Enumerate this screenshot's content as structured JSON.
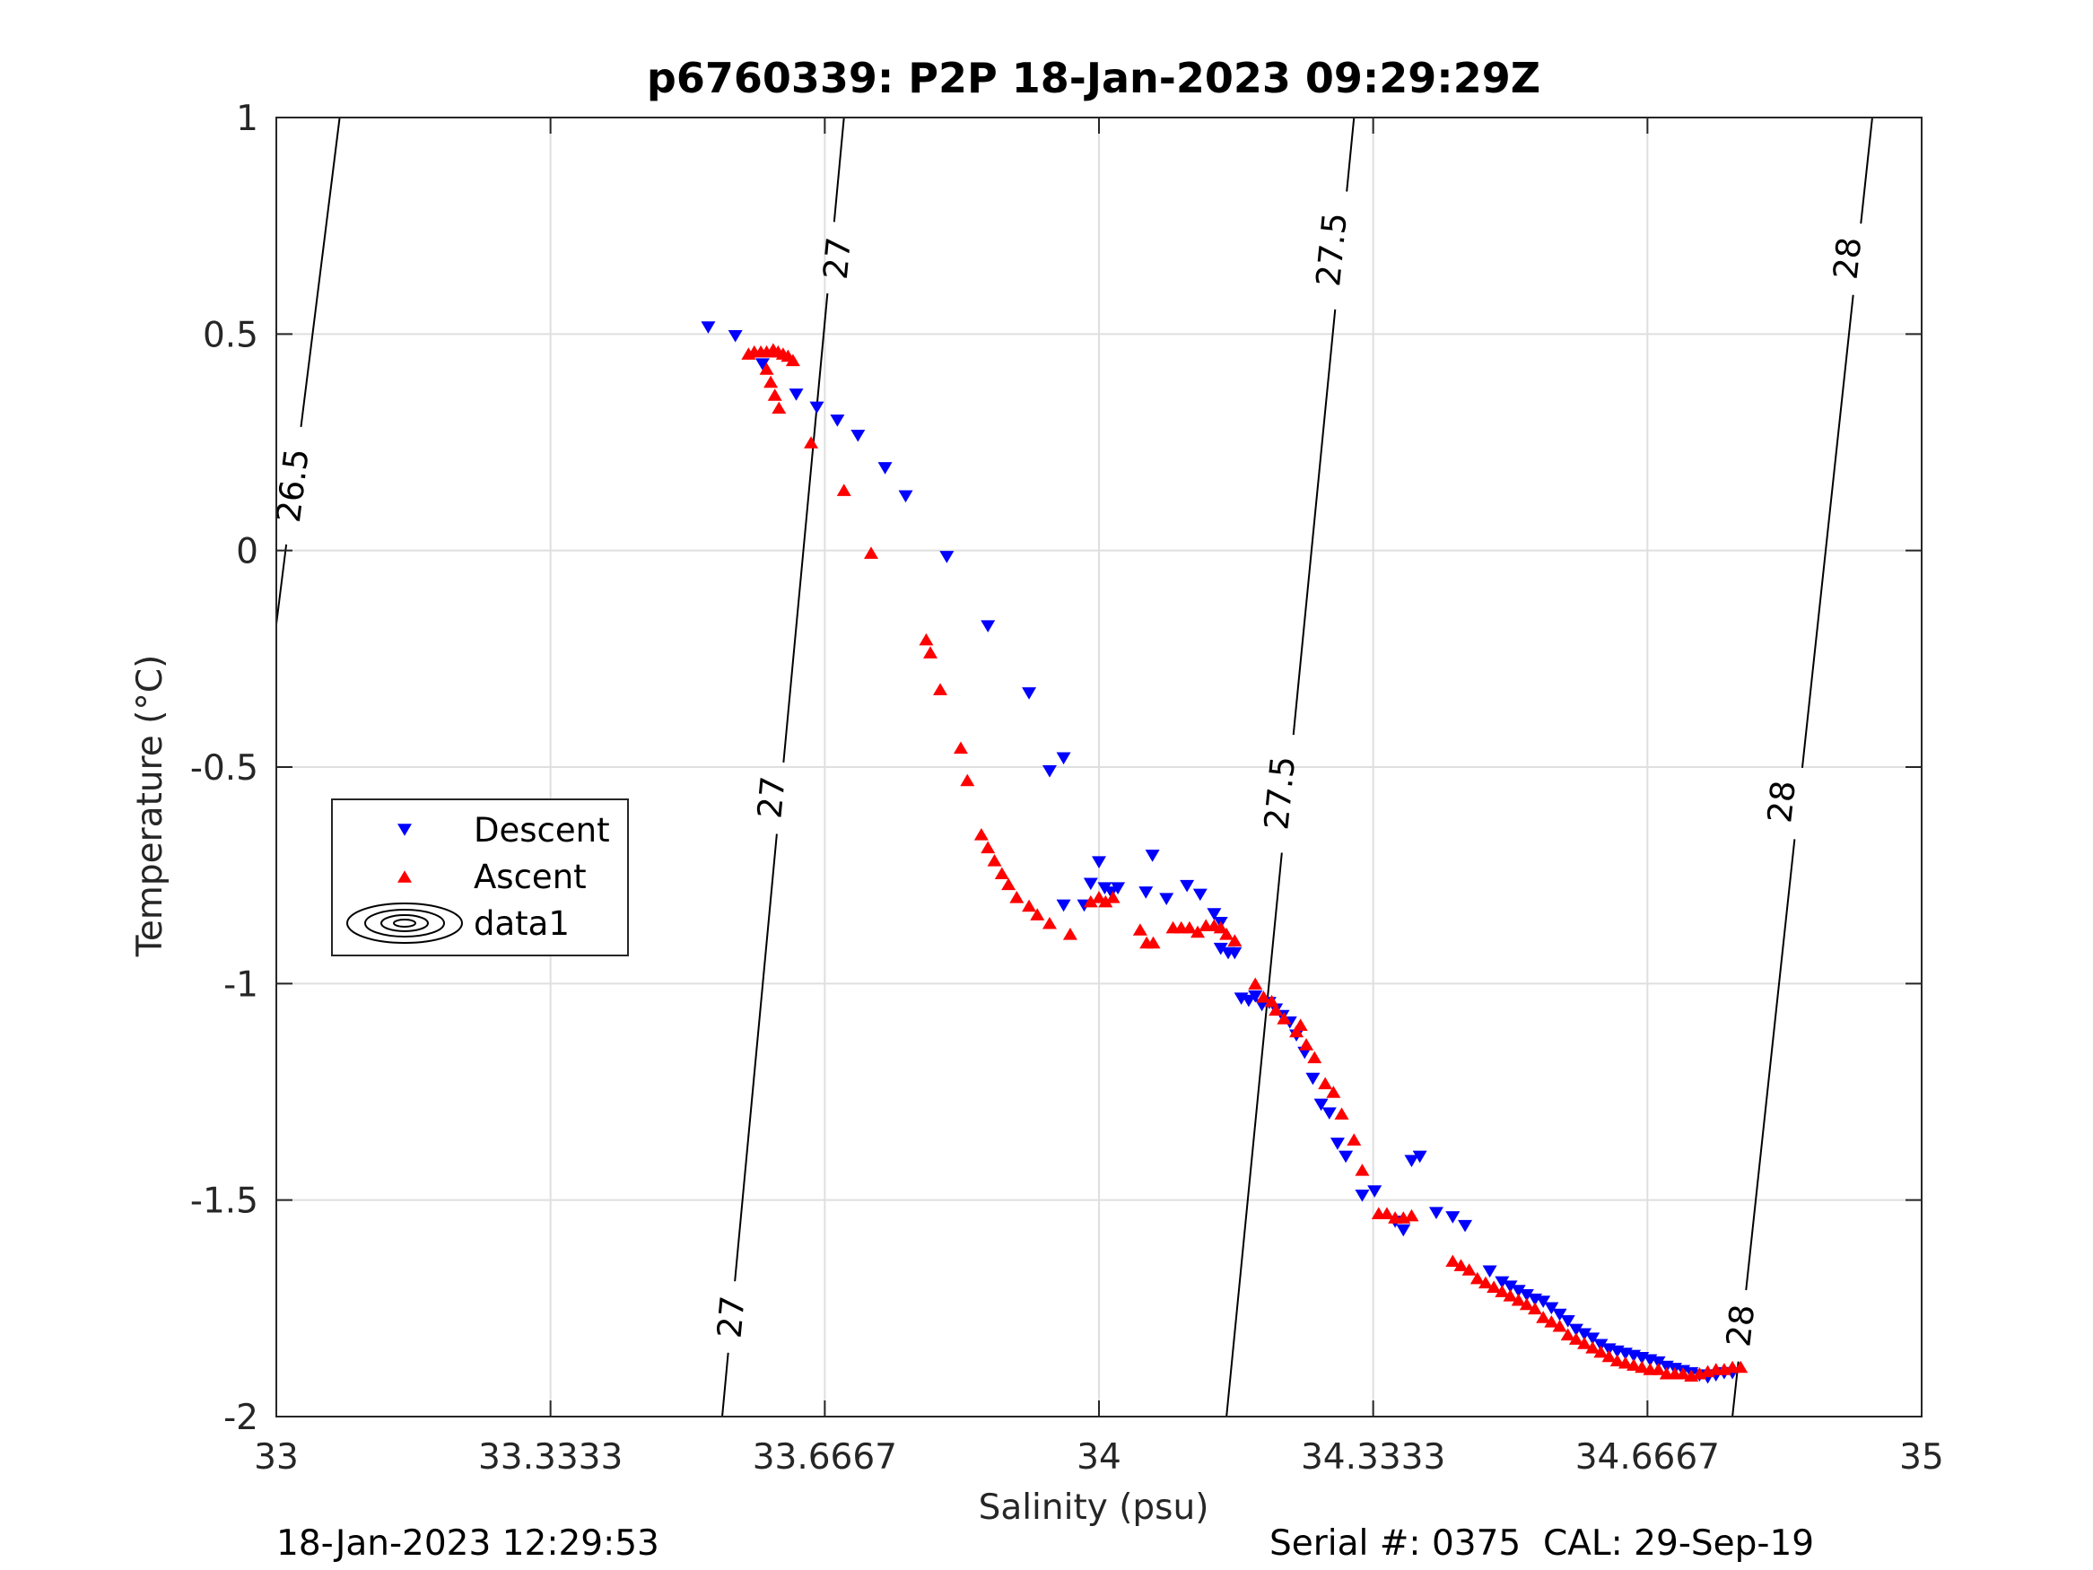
{
  "chart_data": {
    "type": "scatter",
    "title": "p6760339: P2P 18-Jan-2023 09:29:29Z",
    "xlabel": "Salinity (psu)",
    "ylabel": "Temperature (°C)",
    "xlim": [
      33,
      35
    ],
    "ylim": [
      -2,
      1
    ],
    "xticks": [
      33,
      33.3333,
      33.6667,
      34,
      34.3333,
      34.6667,
      35
    ],
    "xtick_labels": [
      "33",
      "33.3333",
      "33.6667",
      "34",
      "34.3333",
      "34.6667",
      "35"
    ],
    "yticks": [
      1,
      0.5,
      0,
      -0.5,
      -1,
      -1.5,
      -2
    ],
    "ytick_labels": [
      "1",
      "0.5",
      "0",
      "-0.5",
      "-1",
      "-1.5",
      "-2"
    ],
    "grid": true,
    "legend_position": "left",
    "legend": [
      {
        "label": "Descent",
        "marker": "triangle-down",
        "color": "#0000ff"
      },
      {
        "label": "Ascent",
        "marker": "triangle-up",
        "color": "#ff0000"
      },
      {
        "label": "data1",
        "marker": "contour",
        "color": "#000000"
      }
    ],
    "series": [
      {
        "name": "Descent",
        "color": "#0000ff",
        "marker": "triangle-down",
        "points": [
          [
            33.525,
            0.515
          ],
          [
            33.558,
            0.495
          ],
          [
            33.591,
            0.43
          ],
          [
            33.632,
            0.36
          ],
          [
            33.657,
            0.33
          ],
          [
            33.682,
            0.3
          ],
          [
            33.707,
            0.265
          ],
          [
            33.74,
            0.19
          ],
          [
            33.765,
            0.125
          ],
          [
            33.815,
            -0.015
          ],
          [
            33.865,
            -0.175
          ],
          [
            33.915,
            -0.33
          ],
          [
            33.94,
            -0.51
          ],
          [
            33.957,
            -0.48
          ],
          [
            33.957,
            -0.82
          ],
          [
            33.982,
            -0.82
          ],
          [
            33.99,
            -0.77
          ],
          [
            34.0,
            -0.72
          ],
          [
            34.007,
            -0.78
          ],
          [
            34.015,
            -0.79
          ],
          [
            34.023,
            -0.78
          ],
          [
            34.057,
            -0.79
          ],
          [
            34.065,
            -0.705
          ],
          [
            34.082,
            -0.805
          ],
          [
            34.107,
            -0.775
          ],
          [
            34.123,
            -0.795
          ],
          [
            34.14,
            -0.84
          ],
          [
            34.148,
            -0.86
          ],
          [
            34.148,
            -0.92
          ],
          [
            34.157,
            -0.93
          ],
          [
            34.165,
            -0.93
          ],
          [
            34.173,
            -1.035
          ],
          [
            34.182,
            -1.04
          ],
          [
            34.19,
            -1.03
          ],
          [
            34.198,
            -1.05
          ],
          [
            34.207,
            -1.045
          ],
          [
            34.215,
            -1.06
          ],
          [
            34.223,
            -1.075
          ],
          [
            34.232,
            -1.09
          ],
          [
            34.24,
            -1.12
          ],
          [
            34.25,
            -1.16
          ],
          [
            34.26,
            -1.22
          ],
          [
            34.27,
            -1.28
          ],
          [
            34.28,
            -1.3
          ],
          [
            34.29,
            -1.37
          ],
          [
            34.3,
            -1.4
          ],
          [
            34.32,
            -1.49
          ],
          [
            34.335,
            -1.48
          ],
          [
            34.36,
            -1.55
          ],
          [
            34.37,
            -1.57
          ],
          [
            34.38,
            -1.41
          ],
          [
            34.39,
            -1.4
          ],
          [
            34.41,
            -1.53
          ],
          [
            34.43,
            -1.54
          ],
          [
            34.445,
            -1.56
          ],
          [
            34.475,
            -1.665
          ],
          [
            34.49,
            -1.69
          ],
          [
            34.5,
            -1.7
          ],
          [
            34.51,
            -1.71
          ],
          [
            34.52,
            -1.72
          ],
          [
            34.53,
            -1.73
          ],
          [
            34.54,
            -1.735
          ],
          [
            34.55,
            -1.75
          ],
          [
            34.56,
            -1.765
          ],
          [
            34.57,
            -1.78
          ],
          [
            34.58,
            -1.8
          ],
          [
            34.59,
            -1.81
          ],
          [
            34.6,
            -1.82
          ],
          [
            34.61,
            -1.835
          ],
          [
            34.62,
            -1.845
          ],
          [
            34.63,
            -1.85
          ],
          [
            34.64,
            -1.855
          ],
          [
            34.65,
            -1.86
          ],
          [
            34.66,
            -1.865
          ],
          [
            34.67,
            -1.87
          ],
          [
            34.68,
            -1.875
          ],
          [
            34.69,
            -1.885
          ],
          [
            34.7,
            -1.89
          ],
          [
            34.71,
            -1.895
          ],
          [
            34.72,
            -1.9
          ],
          [
            34.73,
            -1.905
          ],
          [
            34.74,
            -1.91
          ],
          [
            34.75,
            -1.905
          ],
          [
            34.76,
            -1.9
          ],
          [
            34.77,
            -1.9
          ]
        ]
      },
      {
        "name": "Ascent",
        "color": "#ff0000",
        "marker": "triangle-up",
        "points": [
          [
            33.574,
            0.455
          ],
          [
            33.581,
            0.46
          ],
          [
            33.589,
            0.46
          ],
          [
            33.596,
            0.46
          ],
          [
            33.604,
            0.465
          ],
          [
            33.61,
            0.46
          ],
          [
            33.616,
            0.455
          ],
          [
            33.622,
            0.45
          ],
          [
            33.628,
            0.44
          ],
          [
            33.596,
            0.42
          ],
          [
            33.601,
            0.39
          ],
          [
            33.606,
            0.36
          ],
          [
            33.611,
            0.33
          ],
          [
            33.65,
            0.25
          ],
          [
            33.69,
            0.14
          ],
          [
            33.723,
            -0.005
          ],
          [
            33.79,
            -0.205
          ],
          [
            33.795,
            -0.235
          ],
          [
            33.807,
            -0.32
          ],
          [
            33.832,
            -0.455
          ],
          [
            33.84,
            -0.53
          ],
          [
            33.857,
            -0.655
          ],
          [
            33.865,
            -0.685
          ],
          [
            33.873,
            -0.715
          ],
          [
            33.882,
            -0.745
          ],
          [
            33.89,
            -0.77
          ],
          [
            33.9,
            -0.8
          ],
          [
            33.915,
            -0.82
          ],
          [
            33.925,
            -0.84
          ],
          [
            33.94,
            -0.86
          ],
          [
            33.965,
            -0.885
          ],
          [
            33.99,
            -0.81
          ],
          [
            34.0,
            -0.8
          ],
          [
            34.008,
            -0.81
          ],
          [
            34.017,
            -0.8
          ],
          [
            34.05,
            -0.875
          ],
          [
            34.058,
            -0.905
          ],
          [
            34.066,
            -0.905
          ],
          [
            34.09,
            -0.87
          ],
          [
            34.1,
            -0.87
          ],
          [
            34.11,
            -0.87
          ],
          [
            34.12,
            -0.88
          ],
          [
            34.13,
            -0.865
          ],
          [
            34.14,
            -0.865
          ],
          [
            34.148,
            -0.87
          ],
          [
            34.155,
            -0.885
          ],
          [
            34.165,
            -0.9
          ],
          [
            34.19,
            -1.0
          ],
          [
            34.2,
            -1.03
          ],
          [
            34.21,
            -1.04
          ],
          [
            34.215,
            -1.06
          ],
          [
            34.225,
            -1.08
          ],
          [
            34.24,
            -1.11
          ],
          [
            34.245,
            -1.095
          ],
          [
            34.252,
            -1.14
          ],
          [
            34.262,
            -1.17
          ],
          [
            34.275,
            -1.23
          ],
          [
            34.285,
            -1.25
          ],
          [
            34.295,
            -1.3
          ],
          [
            34.31,
            -1.36
          ],
          [
            34.32,
            -1.43
          ],
          [
            34.34,
            -1.53
          ],
          [
            34.35,
            -1.53
          ],
          [
            34.36,
            -1.54
          ],
          [
            34.37,
            -1.54
          ],
          [
            34.38,
            -1.535
          ],
          [
            34.43,
            -1.64
          ],
          [
            34.44,
            -1.65
          ],
          [
            34.45,
            -1.66
          ],
          [
            34.46,
            -1.68
          ],
          [
            34.47,
            -1.69
          ],
          [
            34.48,
            -1.7
          ],
          [
            34.49,
            -1.71
          ],
          [
            34.5,
            -1.72
          ],
          [
            34.51,
            -1.73
          ],
          [
            34.52,
            -1.74
          ],
          [
            34.53,
            -1.75
          ],
          [
            34.54,
            -1.77
          ],
          [
            34.55,
            -1.78
          ],
          [
            34.56,
            -1.79
          ],
          [
            34.57,
            -1.81
          ],
          [
            34.58,
            -1.82
          ],
          [
            34.59,
            -1.83
          ],
          [
            34.6,
            -1.84
          ],
          [
            34.61,
            -1.85
          ],
          [
            34.62,
            -1.86
          ],
          [
            34.63,
            -1.87
          ],
          [
            34.64,
            -1.875
          ],
          [
            34.65,
            -1.88
          ],
          [
            34.66,
            -1.885
          ],
          [
            34.67,
            -1.89
          ],
          [
            34.68,
            -1.89
          ],
          [
            34.69,
            -1.9
          ],
          [
            34.7,
            -1.9
          ],
          [
            34.71,
            -1.9
          ],
          [
            34.72,
            -1.905
          ],
          [
            34.73,
            -1.9
          ],
          [
            34.74,
            -1.895
          ],
          [
            34.75,
            -1.89
          ],
          [
            34.76,
            -1.89
          ],
          [
            34.77,
            -1.885
          ],
          [
            34.78,
            -1.885
          ]
        ]
      }
    ],
    "contours": [
      {
        "name": "data1",
        "color": "#000000",
        "points": [
          [
            33.0,
            -0.17
          ],
          [
            33.077,
            1.0
          ]
        ],
        "labels": [
          {
            "text": "26.5",
            "at": [
              33.02,
              0.15
            ]
          }
        ]
      },
      {
        "name": "data1",
        "color": "#000000",
        "points": [
          [
            33.542,
            -2.0
          ],
          [
            33.69,
            1.0
          ]
        ],
        "labels": [
          {
            "text": "27",
            "at": [
              33.553,
              -1.77
            ]
          },
          {
            "text": "27",
            "at": [
              33.602,
              -0.57
            ]
          },
          {
            "text": "27",
            "at": [
              33.682,
              0.675
            ]
          }
        ]
      },
      {
        "name": "data1",
        "color": "#000000",
        "points": [
          [
            34.155,
            -2.0
          ],
          [
            34.31,
            1.0
          ]
        ],
        "labels": [
          {
            "text": "27.5",
            "at": [
              34.22,
              -0.56
            ]
          },
          {
            "text": "27.5",
            "at": [
              34.283,
              0.695
            ]
          }
        ]
      },
      {
        "name": "data1",
        "color": "#000000",
        "points": [
          [
            34.77,
            -2.0
          ],
          [
            34.94,
            1.0
          ]
        ],
        "labels": [
          {
            "text": "28",
            "at": [
              34.78,
              -1.79
            ]
          },
          {
            "text": "28",
            "at": [
              34.83,
              -0.58
            ]
          },
          {
            "text": "28",
            "at": [
              34.91,
              0.675
            ]
          }
        ]
      }
    ]
  },
  "footer": {
    "timestamp": "18-Jan-2023 12:29:53",
    "serial": "Serial #: 0375  CAL: 29-Sep-19"
  }
}
